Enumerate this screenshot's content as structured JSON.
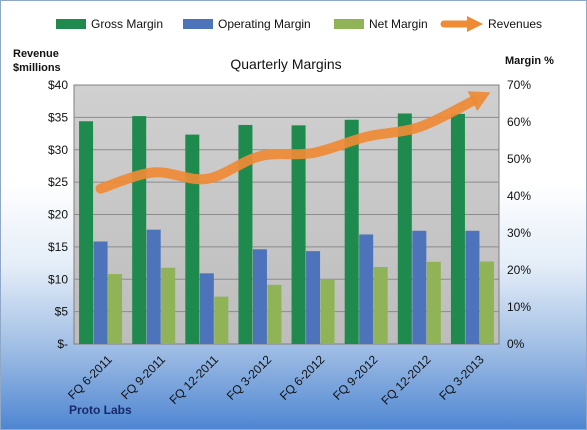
{
  "chart_data": {
    "type": "bar",
    "title": "Quarterly Margins",
    "brand": "Proto Labs",
    "ylabel_left": [
      "Revenue",
      "$millions"
    ],
    "ylabel_right": "Margin %",
    "categories": [
      "FQ 6-2011",
      "FQ 9-2011",
      "FQ 12-2011",
      "FQ 3-2012",
      "FQ 6-2012",
      "FQ 9-2012",
      "FQ 12-2012",
      "FQ 3-2013"
    ],
    "left_axis": {
      "min": 0,
      "max": 40,
      "step": 5,
      "tick_labels": [
        "$-",
        "$5",
        "$10",
        "$15",
        "$20",
        "$25",
        "$30",
        "$35",
        "$40"
      ]
    },
    "right_axis": {
      "min": 0,
      "max": 70,
      "step": 10,
      "tick_labels": [
        "0%",
        "10%",
        "20%",
        "30%",
        "40%",
        "50%",
        "60%",
        "70%"
      ]
    },
    "series": [
      {
        "name": "Gross Margin",
        "kind": "bar",
        "axis": "right",
        "color": "#1e8a4e",
        "values": [
          60.2,
          61.6,
          56.6,
          59.2,
          59.1,
          60.6,
          62.3,
          62.2
        ]
      },
      {
        "name": "Operating Margin",
        "kind": "bar",
        "axis": "right",
        "color": "#4d74ba",
        "values": [
          27.7,
          30.9,
          19.1,
          25.6,
          25.1,
          29.6,
          30.6,
          30.6
        ]
      },
      {
        "name": "Net Margin",
        "kind": "bar",
        "axis": "right",
        "color": "#8fb356",
        "values": [
          18.9,
          20.6,
          12.8,
          16.0,
          17.5,
          20.8,
          22.2,
          22.3
        ]
      },
      {
        "name": "Revenues",
        "kind": "arrow-line",
        "axis": "left",
        "color": "#ef8a35",
        "values": [
          24.0,
          26.5,
          25.5,
          29.0,
          29.5,
          32.0,
          33.5,
          37.5
        ]
      }
    ],
    "grid": true,
    "legend_position": "top"
  }
}
